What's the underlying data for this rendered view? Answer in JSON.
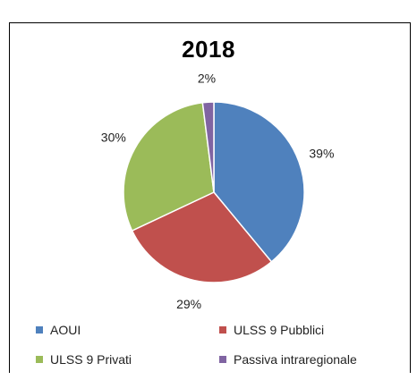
{
  "chart_data": {
    "type": "pie",
    "title": "2018",
    "slices": [
      {
        "label": "AOUI",
        "value": 39,
        "display": "39%",
        "color": "#4f81bd"
      },
      {
        "label": "ULSS 9 Pubblici",
        "value": 29,
        "display": "29%",
        "color": "#c0504d"
      },
      {
        "label": "ULSS 9 Privati",
        "value": 30,
        "display": "30%",
        "color": "#9bbb59"
      },
      {
        "label": "Passiva intraregionale",
        "value": 2,
        "display": "2%",
        "color": "#8064a2"
      }
    ],
    "legend_position": "bottom"
  }
}
